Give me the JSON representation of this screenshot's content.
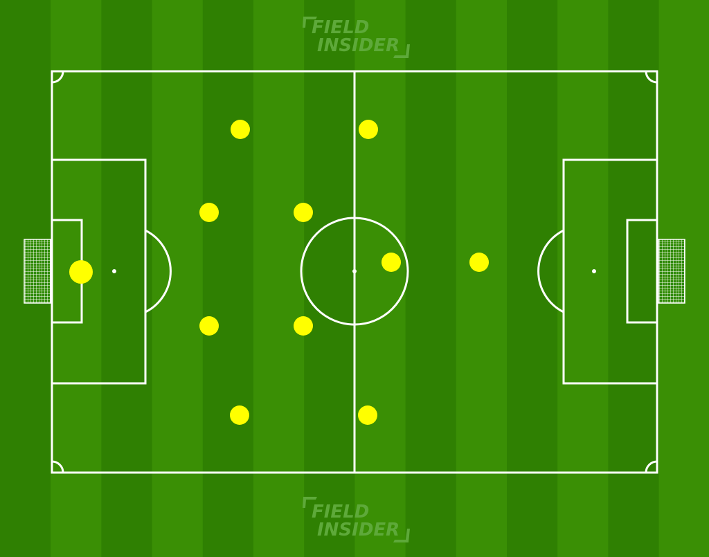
{
  "brand": {
    "line1": "FIELD",
    "line2": "INSIDER"
  },
  "colors": {
    "grass_dark": "#2f8002",
    "grass_light": "#3a8f05",
    "lines": "#ffffff",
    "player": "#ffff00",
    "logo": "#5ea93a"
  },
  "players": [
    {
      "role": "goalkeeper",
      "pos": "GK"
    },
    {
      "role": "defender",
      "pos": "LB"
    },
    {
      "role": "defender",
      "pos": "LCB"
    },
    {
      "role": "defender",
      "pos": "RCB"
    },
    {
      "role": "defender",
      "pos": "RB"
    },
    {
      "role": "midfielder",
      "pos": "LCM"
    },
    {
      "role": "midfielder",
      "pos": "RCM"
    },
    {
      "role": "midfielder",
      "pos": "LM"
    },
    {
      "role": "midfielder",
      "pos": "RM"
    },
    {
      "role": "forward",
      "pos": "CF-deep"
    },
    {
      "role": "forward",
      "pos": "ST"
    }
  ]
}
